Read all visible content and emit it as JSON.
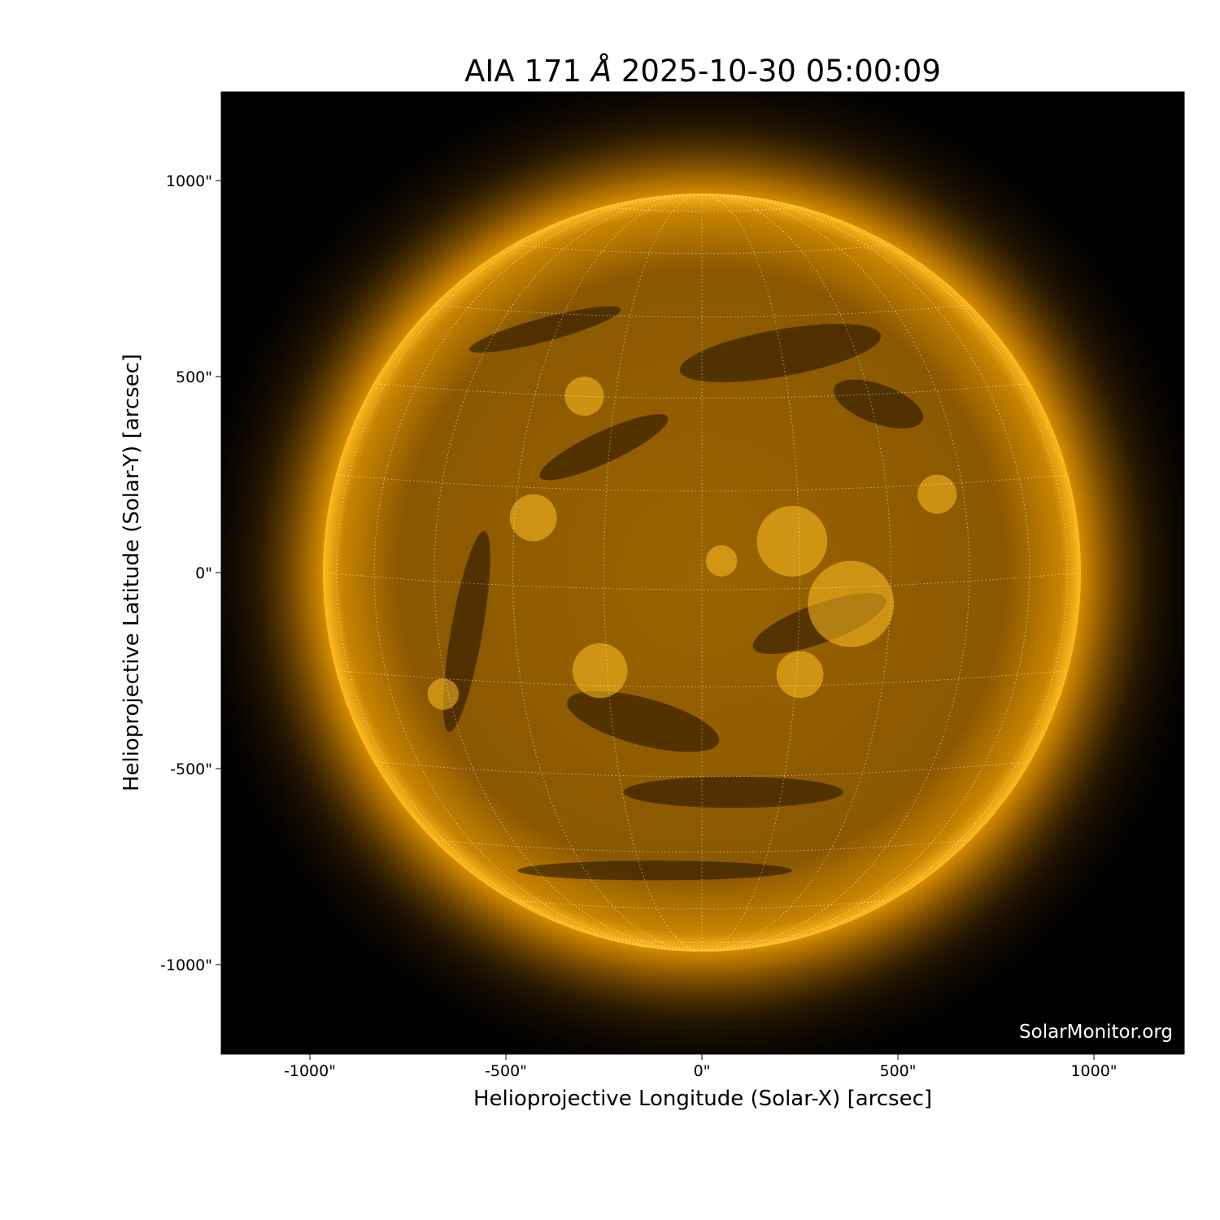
{
  "title": {
    "instrument": "AIA 171",
    "unit_symbol": "Å",
    "timestamp": "2025-10-30 05:00:09"
  },
  "watermark": "SolarMonitor.org",
  "chart_data": {
    "type": "image",
    "title": "AIA 171 Å 2025-10-30 05:00:09",
    "xlabel": "Helioprojective Longitude (Solar-X) [arcsec]",
    "ylabel": "Helioprojective Latitude (Solar-Y) [arcsec]",
    "xlim": [
      -1230,
      1230
    ],
    "ylim": [
      -1230,
      1230
    ],
    "xticks": [
      -1000,
      -500,
      0,
      500,
      1000
    ],
    "yticks": [
      -1000,
      -500,
      0,
      500,
      1000
    ],
    "xtick_labels": [
      "-1000\"",
      "-500\"",
      "0\"",
      "500\"",
      "1000\""
    ],
    "ytick_labels": [
      "-1000\"",
      "-500\"",
      "0\"",
      "500\"",
      "1000\""
    ],
    "solar_radius_arcsec": 965,
    "grid": "heliographic dotted, 15° spacing",
    "colormap": "sdoaia171",
    "colors": {
      "background": "#000000",
      "limb": "#ffb300",
      "disk": "#8a5a00",
      "grid": "#ffffff"
    }
  }
}
